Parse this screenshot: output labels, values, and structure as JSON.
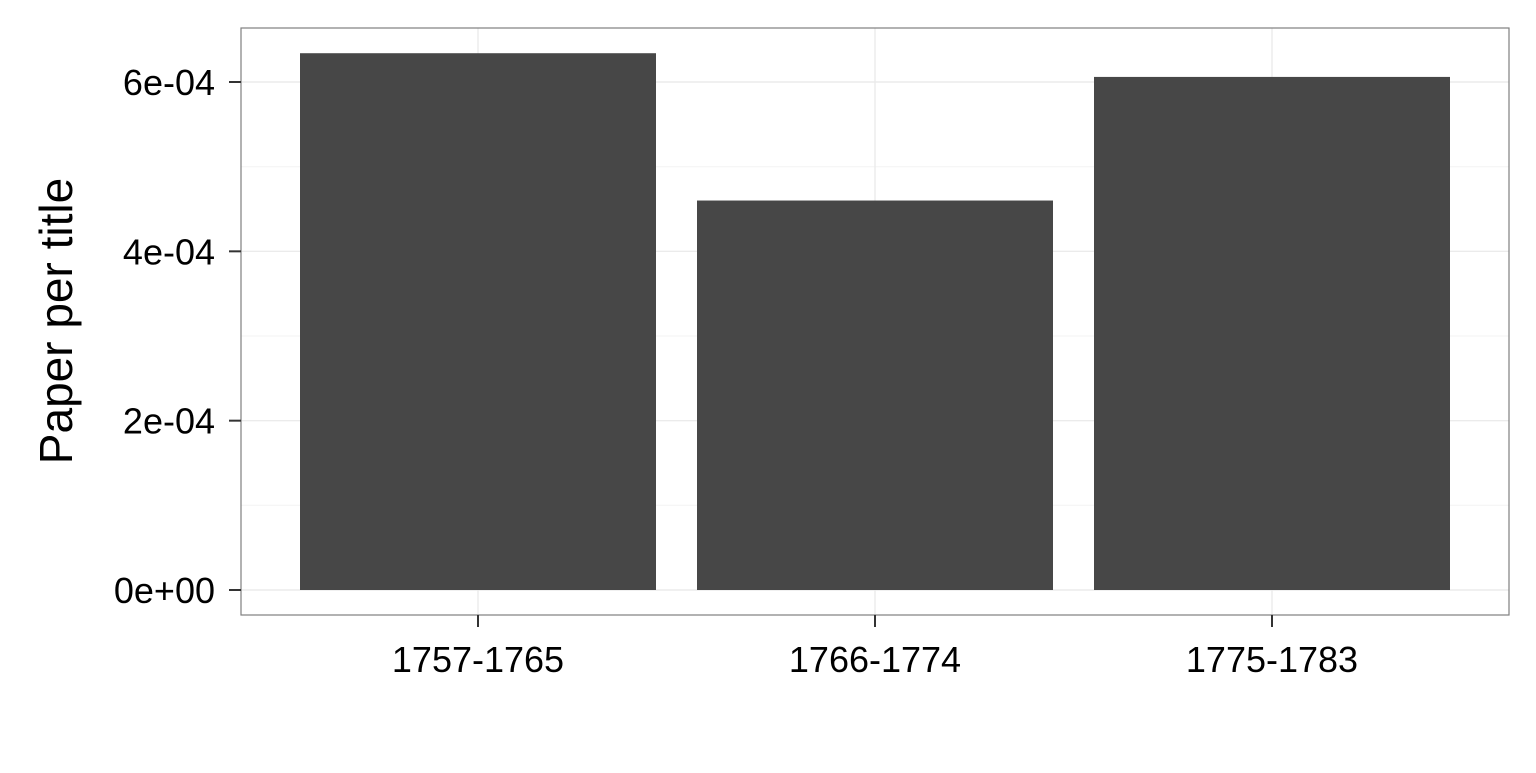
{
  "chart_data": {
    "type": "bar",
    "title": "",
    "xlabel": "",
    "ylabel": "Paper per title",
    "categories": [
      "1757-1765",
      "1766-1774",
      "1775-1783"
    ],
    "values": [
      0.000634,
      0.00046,
      0.000606
    ],
    "ylim": [
      0,
      0.00065
    ],
    "y_ticks": [
      0,
      0.0002,
      0.0004,
      0.0006
    ],
    "y_tick_labels": [
      "0e+00",
      "2e-04",
      "4e-04",
      "6e-04"
    ],
    "grid": true,
    "legend": "none",
    "colors": {
      "bar": "#474747",
      "panel_border": "#7f7f7f",
      "grid_major": "#ebebeb",
      "grid_minor": "#f5f5f5",
      "axis_tick": "#333333"
    }
  }
}
